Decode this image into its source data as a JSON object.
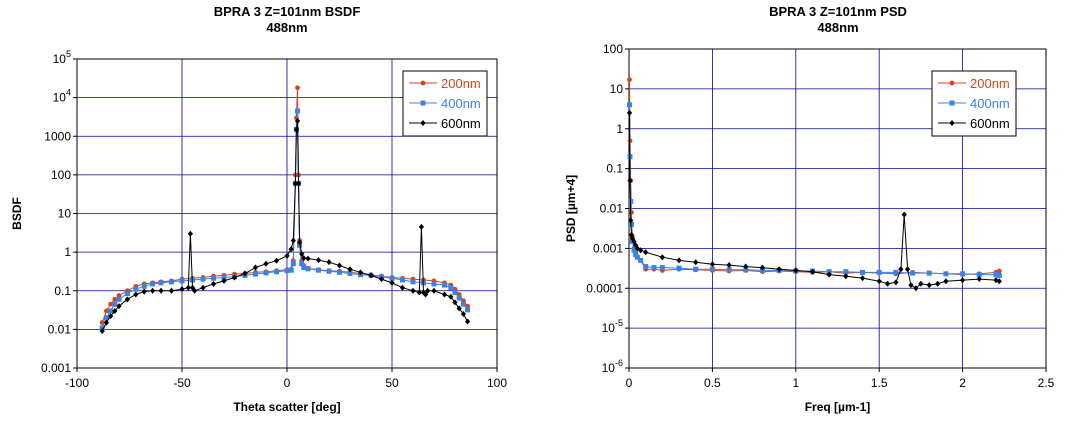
{
  "colors": {
    "s200": "#d2461e",
    "s400": "#3c82e6",
    "s600": "#000000",
    "grid": "#0000a0"
  },
  "chart_data": [
    {
      "type": "line",
      "title": "BPRA 3 Z=101nm BSDF",
      "subtitle": "488nm",
      "xlabel": "Theta scatter [deg]",
      "ylabel": "BSDF",
      "xlim": [
        -100,
        100
      ],
      "ylim": [
        0.001,
        100000
      ],
      "yscale": "log",
      "grid": true,
      "legend": "top-right",
      "xticks": [
        "-100",
        "-50",
        "0",
        "50",
        "100"
      ],
      "xtick_values": [
        -100,
        -50,
        0,
        50,
        100
      ],
      "yticks": [
        {
          "v": 0.001,
          "label": "0.001"
        },
        {
          "v": 0.01,
          "label": "0.01"
        },
        {
          "v": 0.1,
          "label": "0.1"
        },
        {
          "v": 1,
          "label": "1"
        },
        {
          "v": 10,
          "label": "10"
        },
        {
          "v": 100,
          "label": "100"
        },
        {
          "v": 1000,
          "label": "1000"
        },
        {
          "v": 10000,
          "label": "10",
          "exp": "4"
        },
        {
          "v": 100000,
          "label": "10",
          "exp": "5"
        }
      ],
      "series": [
        {
          "name": "200nm",
          "color": "s200",
          "marker": "circle",
          "x": [
            -88,
            -86,
            -84,
            -82,
            -80,
            -76,
            -72,
            -68,
            -64,
            -60,
            -55,
            -50,
            -45,
            -40,
            -35,
            -30,
            -25,
            -20,
            -15,
            -10,
            -5,
            0,
            2,
            3,
            4,
            4.5,
            5,
            5.5,
            6,
            7,
            8,
            10,
            15,
            20,
            25,
            30,
            35,
            40,
            45,
            50,
            55,
            60,
            65,
            70,
            75,
            78,
            80,
            82,
            84,
            86
          ],
          "y": [
            0.015,
            0.03,
            0.045,
            0.06,
            0.075,
            0.1,
            0.13,
            0.15,
            0.16,
            0.17,
            0.18,
            0.2,
            0.21,
            0.22,
            0.24,
            0.25,
            0.27,
            0.28,
            0.3,
            0.31,
            0.33,
            0.35,
            0.36,
            0.6,
            100,
            3000,
            18000,
            100,
            2,
            0.6,
            0.45,
            0.38,
            0.35,
            0.33,
            0.32,
            0.3,
            0.28,
            0.26,
            0.24,
            0.22,
            0.21,
            0.2,
            0.19,
            0.18,
            0.16,
            0.14,
            0.11,
            0.08,
            0.055,
            0.04
          ]
        },
        {
          "name": "400nm",
          "color": "s400",
          "marker": "square",
          "x": [
            -88,
            -86,
            -84,
            -82,
            -80,
            -76,
            -72,
            -68,
            -64,
            -60,
            -55,
            -50,
            -45,
            -40,
            -35,
            -30,
            -25,
            -20,
            -15,
            -10,
            -5,
            0,
            2,
            3,
            4,
            4.5,
            5,
            5.5,
            6,
            7,
            8,
            10,
            15,
            20,
            25,
            30,
            35,
            40,
            45,
            50,
            55,
            60,
            65,
            70,
            75,
            78,
            80,
            82,
            84,
            86
          ],
          "y": [
            0.011,
            0.02,
            0.03,
            0.045,
            0.06,
            0.085,
            0.11,
            0.13,
            0.15,
            0.16,
            0.17,
            0.18,
            0.19,
            0.2,
            0.21,
            0.22,
            0.23,
            0.25,
            0.27,
            0.29,
            0.31,
            0.33,
            0.34,
            0.5,
            60,
            1500,
            4500,
            60,
            1.5,
            0.5,
            0.4,
            0.37,
            0.34,
            0.32,
            0.3,
            0.28,
            0.26,
            0.25,
            0.23,
            0.21,
            0.19,
            0.17,
            0.16,
            0.15,
            0.14,
            0.12,
            0.09,
            0.065,
            0.045,
            0.032
          ]
        },
        {
          "name": "600nm",
          "color": "s600",
          "marker": "diamond",
          "x": [
            -88,
            -86,
            -84,
            -82,
            -80,
            -76,
            -72,
            -68,
            -64,
            -60,
            -55,
            -50,
            -47,
            -46,
            -45,
            -44,
            -40,
            -35,
            -30,
            -25,
            -20,
            -15,
            -10,
            -5,
            0,
            2,
            3,
            4,
            4.5,
            5,
            5.5,
            6,
            7,
            8,
            10,
            15,
            20,
            25,
            30,
            35,
            40,
            45,
            50,
            55,
            60,
            63,
            64,
            65,
            66,
            67,
            70,
            75,
            78,
            80,
            82,
            84,
            86
          ],
          "y": [
            0.009,
            0.015,
            0.022,
            0.03,
            0.04,
            0.06,
            0.08,
            0.095,
            0.1,
            0.1,
            0.1,
            0.11,
            0.12,
            3,
            0.12,
            0.1,
            0.12,
            0.15,
            0.18,
            0.22,
            0.28,
            0.4,
            0.5,
            0.6,
            0.8,
            1.2,
            2,
            60,
            1500,
            2500,
            60,
            1.8,
            0.9,
            0.7,
            0.68,
            0.62,
            0.55,
            0.45,
            0.36,
            0.3,
            0.25,
            0.2,
            0.16,
            0.12,
            0.1,
            0.09,
            4.5,
            0.09,
            0.08,
            0.1,
            0.1,
            0.08,
            0.07,
            0.05,
            0.035,
            0.025,
            0.016
          ]
        }
      ]
    },
    {
      "type": "line",
      "title": "BPRA 3 Z=101nm PSD",
      "subtitle": "488nm",
      "xlabel": "Freq [µm-1]",
      "ylabel": "PSD [µm+4]",
      "xlim": [
        0,
        2.5
      ],
      "ylim": [
        1e-06,
        100
      ],
      "yscale": "log",
      "grid": true,
      "legend": "top-right",
      "xticks": [
        "0",
        "0.5",
        "1",
        "1.5",
        "2",
        "2.5"
      ],
      "xtick_values": [
        0,
        0.5,
        1,
        1.5,
        2,
        2.5
      ],
      "yticks": [
        {
          "v": 1e-06,
          "label": "10",
          "exp": "-6"
        },
        {
          "v": 1e-05,
          "label": "10",
          "exp": "-5"
        },
        {
          "v": 0.0001,
          "label": "0.0001"
        },
        {
          "v": 0.001,
          "label": "0.001"
        },
        {
          "v": 0.01,
          "label": "0.01"
        },
        {
          "v": 0.1,
          "label": "0.1"
        },
        {
          "v": 1,
          "label": "1"
        },
        {
          "v": 10,
          "label": "10"
        },
        {
          "v": 100,
          "label": "100"
        }
      ],
      "series": [
        {
          "name": "200nm",
          "color": "s200",
          "marker": "circle",
          "x": [
            0.003,
            0.006,
            0.01,
            0.015,
            0.02,
            0.03,
            0.04,
            0.05,
            0.07,
            0.1,
            0.15,
            0.2,
            0.3,
            0.4,
            0.5,
            0.6,
            0.7,
            0.8,
            0.9,
            1.0,
            1.1,
            1.2,
            1.3,
            1.4,
            1.5,
            1.6,
            1.7,
            1.8,
            1.9,
            2.0,
            2.1,
            2.2,
            2.22
          ],
          "y": [
            17,
            0.5,
            0.05,
            0.008,
            0.002,
            0.001,
            0.0008,
            0.0006,
            0.0005,
            0.0003,
            0.0003,
            0.00028,
            0.0003,
            0.00029,
            0.00028,
            0.00027,
            0.00028,
            0.00026,
            0.00027,
            0.00026,
            0.00025,
            0.00026,
            0.00024,
            0.00025,
            0.00024,
            0.00023,
            0.00025,
            0.00024,
            0.00023,
            0.00022,
            0.00023,
            0.00025,
            0.00027
          ]
        },
        {
          "name": "400nm",
          "color": "s400",
          "marker": "square",
          "x": [
            0.003,
            0.006,
            0.01,
            0.015,
            0.02,
            0.03,
            0.04,
            0.05,
            0.07,
            0.1,
            0.15,
            0.2,
            0.3,
            0.4,
            0.5,
            0.6,
            0.7,
            0.8,
            0.9,
            1.0,
            1.1,
            1.2,
            1.3,
            1.4,
            1.5,
            1.6,
            1.7,
            1.8,
            1.9,
            2.0,
            2.1,
            2.2,
            2.22
          ],
          "y": [
            4,
            0.2,
            0.015,
            0.004,
            0.0015,
            0.0009,
            0.0007,
            0.0006,
            0.0005,
            0.00035,
            0.00033,
            0.00033,
            0.00032,
            0.0003,
            0.0003,
            0.00029,
            0.00029,
            0.00028,
            0.00028,
            0.00027,
            0.00027,
            0.00026,
            0.00026,
            0.00025,
            0.00025,
            0.00025,
            0.00024,
            0.00024,
            0.00023,
            0.00023,
            0.00022,
            0.00022,
            0.00021
          ]
        },
        {
          "name": "600nm",
          "color": "s600",
          "marker": "diamond",
          "x": [
            0.003,
            0.006,
            0.01,
            0.015,
            0.02,
            0.03,
            0.04,
            0.05,
            0.07,
            0.1,
            0.2,
            0.3,
            0.4,
            0.5,
            0.6,
            0.7,
            0.8,
            0.9,
            1.0,
            1.1,
            1.2,
            1.3,
            1.4,
            1.5,
            1.55,
            1.6,
            1.63,
            1.65,
            1.67,
            1.69,
            1.72,
            1.75,
            1.8,
            1.85,
            1.9,
            2.0,
            2.1,
            2.2,
            2.22
          ],
          "y": [
            2.5,
            0.05,
            0.005,
            0.0022,
            0.0018,
            0.0015,
            0.0012,
            0.001,
            0.0009,
            0.0008,
            0.0006,
            0.0005,
            0.00045,
            0.0004,
            0.00038,
            0.00035,
            0.00033,
            0.0003,
            0.00028,
            0.00026,
            0.00022,
            0.0002,
            0.00018,
            0.00015,
            0.00013,
            0.00014,
            0.0003,
            0.007,
            0.0003,
            0.00012,
            0.0001,
            0.00013,
            0.00012,
            0.00013,
            0.00015,
            0.00016,
            0.00017,
            0.00016,
            0.00015
          ]
        }
      ]
    }
  ]
}
